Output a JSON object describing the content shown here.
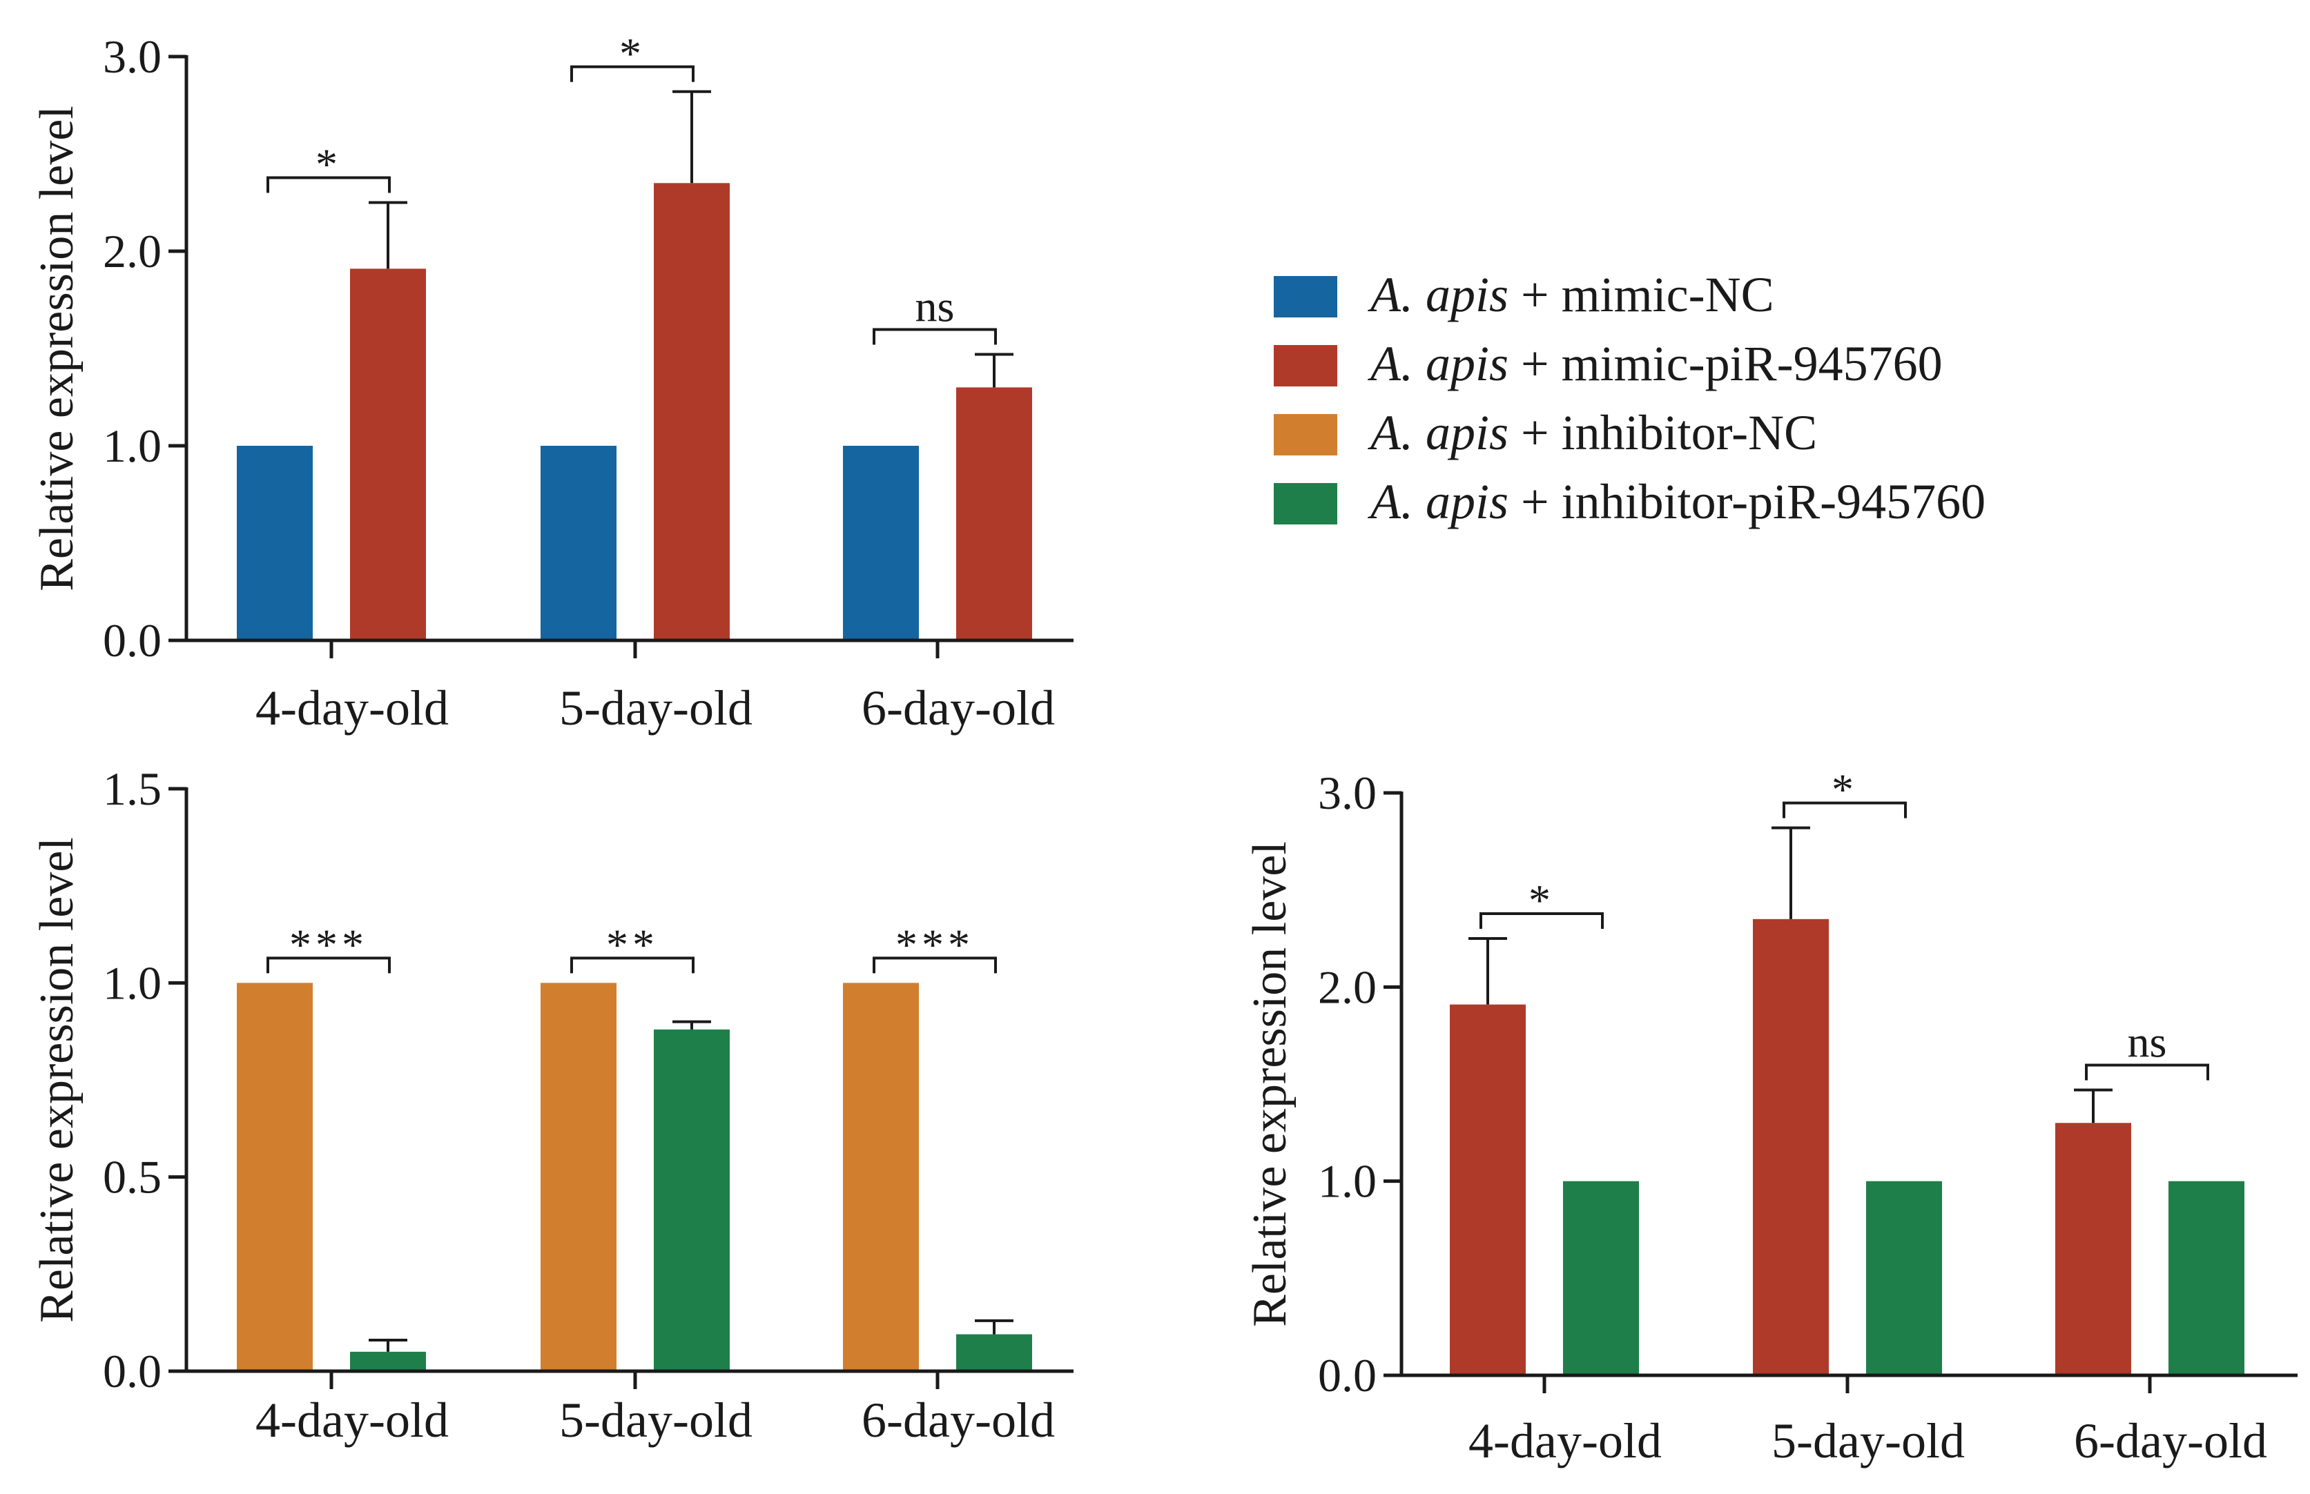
{
  "legend": {
    "items": [
      {
        "italic": "A. apis",
        "rest": " + mimic-NC",
        "color": "#1565a0"
      },
      {
        "italic": "A. apis",
        "rest": " + mimic-piR-945760",
        "color": "#b03a2a"
      },
      {
        "italic": "A. apis",
        "rest": " + inhibitor-NC",
        "color": "#d17f2f"
      },
      {
        "italic": "A. apis",
        "rest": " + inhibitor-piR-945760",
        "color": "#1f7f4a"
      }
    ]
  },
  "chart_data": [
    {
      "id": "top-left",
      "type": "bar",
      "title": "",
      "xlabel": "",
      "ylabel": "Relative expression level",
      "ylim": [
        0,
        3.0
      ],
      "yticks": [
        0.0,
        1.0,
        2.0,
        3.0
      ],
      "ytick_labels": [
        "0.0",
        "1.0",
        "2.0",
        "3.0"
      ],
      "categories": [
        "4-day-old",
        "5-day-old",
        "6-day-old"
      ],
      "series": [
        {
          "name": "A. apis + mimic-NC",
          "color": "#1565a0",
          "values": [
            1.0,
            1.0,
            1.0
          ],
          "errors": [
            null,
            null,
            null
          ]
        },
        {
          "name": "A. apis + mimic-piR-945760",
          "color": "#b03a2a",
          "values": [
            1.91,
            2.35,
            1.3
          ],
          "errors": [
            0.34,
            0.47,
            0.17
          ]
        }
      ],
      "significance": [
        "*",
        "*",
        "ns"
      ]
    },
    {
      "id": "bottom-left",
      "type": "bar",
      "title": "",
      "xlabel": "",
      "ylabel": "Relative expression level",
      "ylim": [
        0,
        1.5
      ],
      "yticks": [
        0.0,
        0.5,
        1.0,
        1.5
      ],
      "ytick_labels": [
        "0.0",
        "0.5",
        "1.0",
        "1.5"
      ],
      "categories": [
        "4-day-old",
        "5-day-old",
        "6-day-old"
      ],
      "series": [
        {
          "name": "A. apis + inhibitor-NC",
          "color": "#d17f2f",
          "values": [
            1.0,
            1.0,
            1.0
          ],
          "errors": [
            null,
            null,
            null
          ]
        },
        {
          "name": "A. apis + inhibitor-piR-945760",
          "color": "#1f7f4a",
          "values": [
            0.05,
            0.88,
            0.095
          ],
          "errors": [
            0.03,
            0.02,
            0.035
          ]
        }
      ],
      "significance": [
        "***",
        "**",
        "***"
      ]
    },
    {
      "id": "bottom-right",
      "type": "bar",
      "title": "",
      "xlabel": "",
      "ylabel": "Relative expression level",
      "ylim": [
        0,
        3.0
      ],
      "yticks": [
        0.0,
        1.0,
        2.0,
        3.0
      ],
      "ytick_labels": [
        "0.0",
        "1.0",
        "2.0",
        "3.0"
      ],
      "categories": [
        "4-day-old",
        "5-day-old",
        "6-day-old"
      ],
      "series": [
        {
          "name": "A. apis + mimic-piR-945760",
          "color": "#b03a2a",
          "values": [
            1.91,
            2.35,
            1.3
          ],
          "errors": [
            0.34,
            0.47,
            0.17
          ]
        },
        {
          "name": "A. apis + inhibitor-piR-945760",
          "color": "#1f7f4a",
          "values": [
            1.0,
            1.0,
            1.0
          ],
          "errors": [
            null,
            null,
            null
          ]
        }
      ],
      "significance": [
        "*",
        "*",
        "ns"
      ]
    }
  ]
}
